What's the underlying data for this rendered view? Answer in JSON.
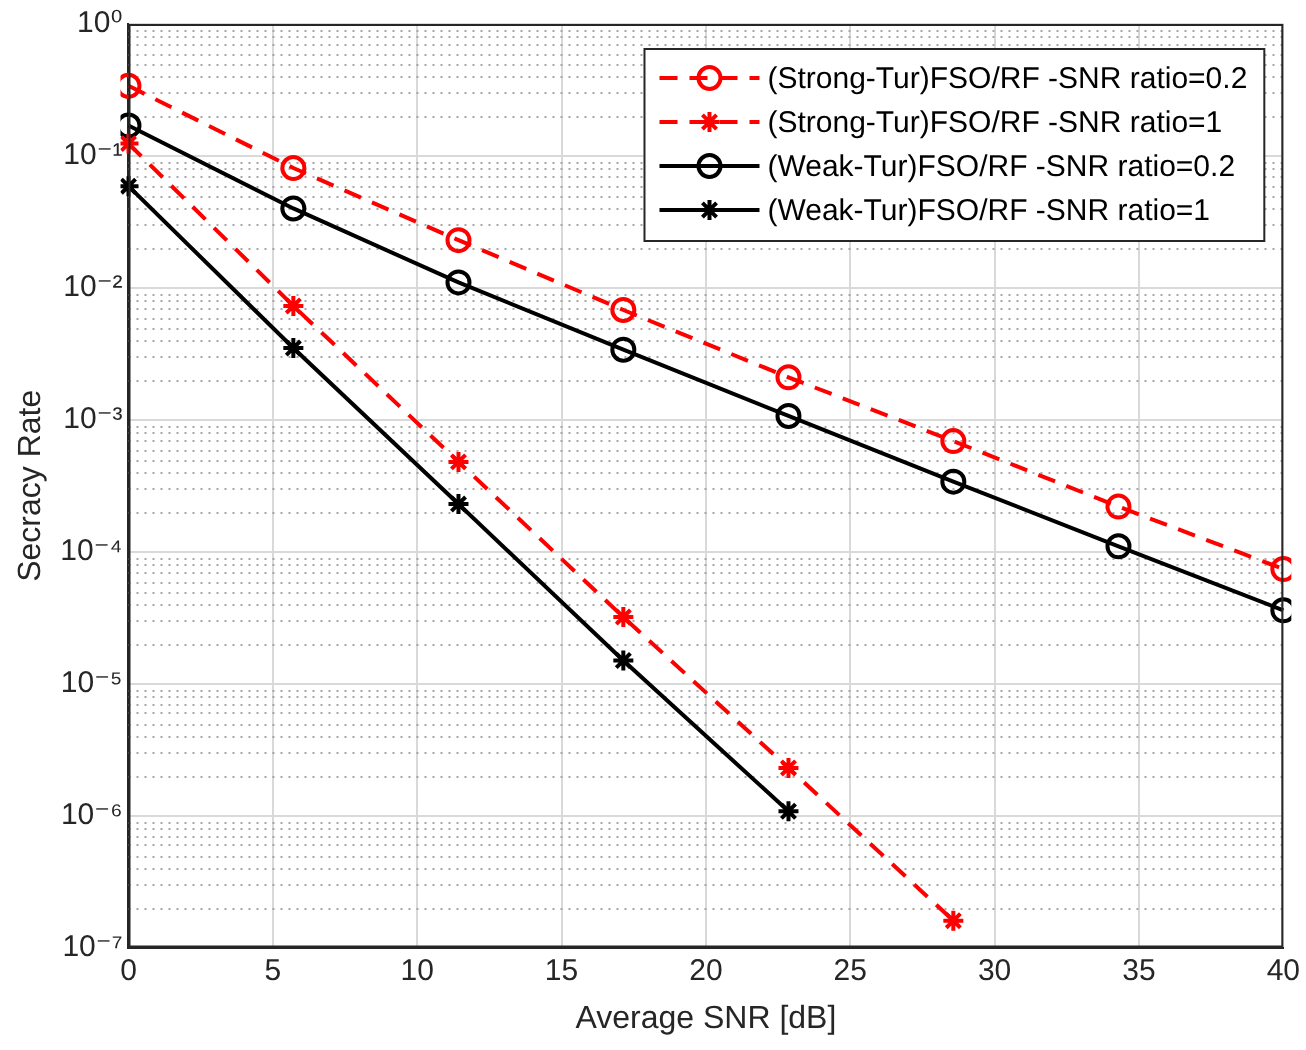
{
  "chart_data": {
    "type": "line",
    "xlabel": "Average SNR [dB]",
    "ylabel": "Secracy Rate",
    "x": [
      0,
      5.71,
      11.43,
      17.14,
      22.86,
      28.57,
      34.29,
      40
    ],
    "series": [
      {
        "name": "(Strong-Tur)FSO/RF -SNR ratio=0.2",
        "color": "#ff0000",
        "marker": "circle",
        "line_style": "dashed",
        "values": [
          0.34,
          0.081,
          0.023,
          0.0068,
          0.0021,
          0.00069,
          0.00022,
          7.4e-05
        ]
      },
      {
        "name": "(Strong-Tur)FSO/RF -SNR ratio=1",
        "color": "#ff0000",
        "marker": "cross",
        "line_style": "dashed",
        "values": [
          0.124,
          0.0073,
          0.00048,
          3.2e-05,
          2.3e-06,
          1.6e-07,
          null,
          null
        ]
      },
      {
        "name": "(Weak-Tur)FSO/RF -SNR ratio=0.2",
        "color": "#000000",
        "marker": "circle",
        "line_style": "solid",
        "values": [
          0.17,
          0.04,
          0.011,
          0.0034,
          0.00107,
          0.00034,
          0.00011,
          3.6e-05
        ]
      },
      {
        "name": "(Weak-Tur)FSO/RF -SNR ratio=1",
        "color": "#000000",
        "marker": "cross",
        "line_style": "solid",
        "values": [
          0.059,
          0.0035,
          0.00023,
          1.5e-05,
          1.08e-06,
          null,
          null,
          null
        ]
      }
    ],
    "log": "y",
    "xlim": [
      0,
      40
    ],
    "xticks": [
      0,
      5,
      10,
      15,
      20,
      25,
      30,
      35,
      40
    ],
    "ylim": [
      1e-07,
      1
    ],
    "yticks": [
      {
        "value": 1,
        "label": "10⁰"
      },
      {
        "value": 0.1,
        "label": "10⁻¹"
      },
      {
        "value": 0.01,
        "label": "10⁻²"
      },
      {
        "value": 0.001,
        "label": "10⁻³"
      },
      {
        "value": 0.0001,
        "label": "10⁻⁴"
      },
      {
        "value": 1e-05,
        "label": "10⁻⁵"
      },
      {
        "value": 1e-06,
        "label": "10⁻⁶"
      },
      {
        "value": 1e-07,
        "label": "10⁻⁷"
      }
    ],
    "grid": true,
    "legend": "top right"
  }
}
